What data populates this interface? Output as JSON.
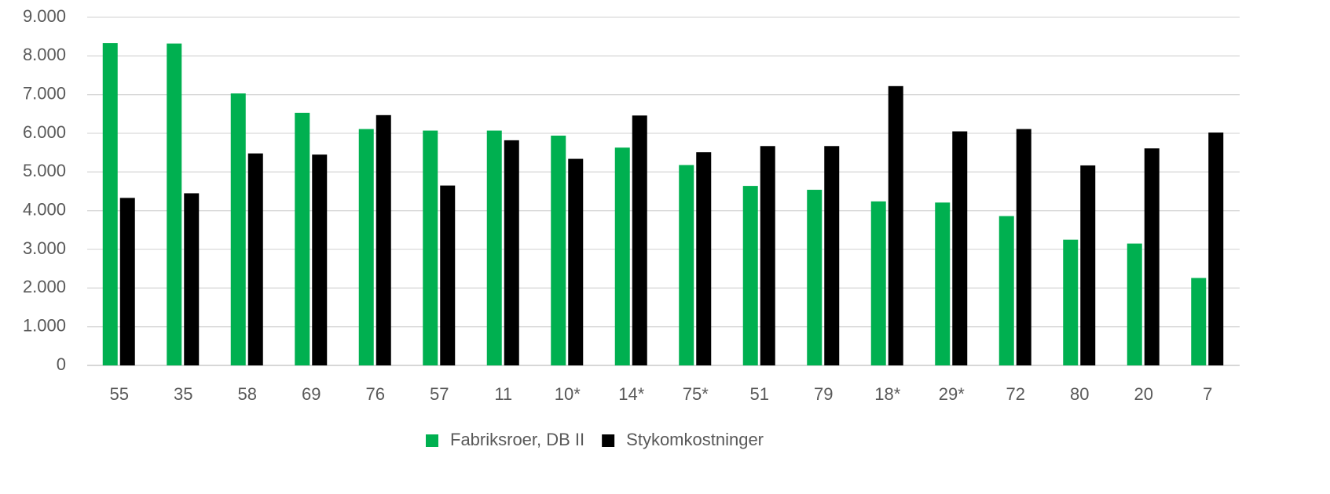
{
  "chart_data": {
    "type": "bar",
    "categories": [
      "55",
      "35",
      "58",
      "69",
      "76",
      "57",
      "11",
      "10*",
      "14*",
      "75*",
      "51",
      "79",
      "18*",
      "29*",
      "72",
      "80",
      "20",
      "7"
    ],
    "series": [
      {
        "name": "Fabriksroer, DB II",
        "color": "#00b050",
        "values": [
          8330,
          8320,
          7030,
          6530,
          6110,
          6070,
          6070,
          5940,
          5630,
          5180,
          4640,
          4540,
          4240,
          4210,
          3860,
          3250,
          3150,
          2260
        ]
      },
      {
        "name": "Stykomkostninger",
        "color": "#000000",
        "values": [
          4330,
          4450,
          5480,
          5450,
          6470,
          4650,
          5820,
          5340,
          6460,
          5510,
          5670,
          5670,
          7220,
          6050,
          6110,
          5170,
          5610,
          6020
        ]
      }
    ],
    "ylim": [
      0,
      9000
    ],
    "yticks": [
      0,
      {
        "value": 1000,
        "label": "1.000"
      },
      {
        "value": 2000,
        "label": "2.000"
      },
      {
        "value": 3000,
        "label": "3.000"
      },
      {
        "value": 4000,
        "label": "4.000"
      },
      {
        "value": 5000,
        "label": "5.000"
      },
      {
        "value": 6000,
        "label": "6.000"
      },
      {
        "value": 7000,
        "label": "7.000"
      },
      {
        "value": 8000,
        "label": "8.000"
      },
      {
        "value": 9000,
        "label": "9.000"
      }
    ],
    "grid": true,
    "legend": "bottom"
  }
}
